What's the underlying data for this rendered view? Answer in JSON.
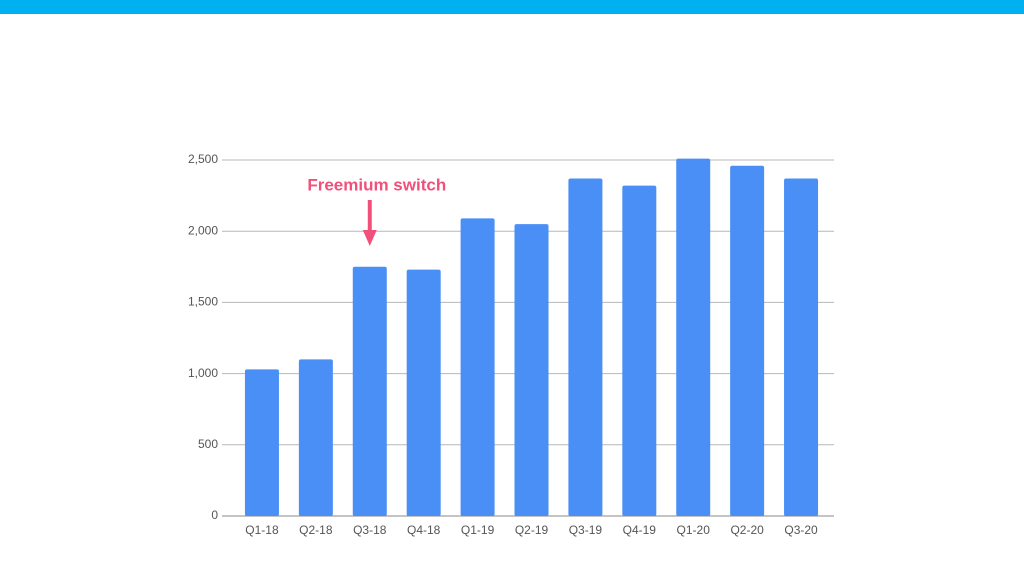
{
  "chart_data": {
    "type": "bar",
    "categories": [
      "Q1-18",
      "Q2-18",
      "Q3-18",
      "Q4-18",
      "Q1-19",
      "Q2-19",
      "Q3-19",
      "Q4-19",
      "Q1-20",
      "Q2-20",
      "Q3-20"
    ],
    "values": [
      1030,
      1100,
      1750,
      1730,
      2090,
      2050,
      2370,
      2320,
      2510,
      2460,
      2370
    ],
    "color": "#4a8ff6",
    "ylim": [
      0,
      2500
    ],
    "yticks": [
      0,
      500,
      {
        "value": 1000,
        "label": "1,000"
      },
      {
        "value": 1500,
        "label": "1,500"
      },
      {
        "value": 2000,
        "label": "2,000"
      },
      {
        "value": 2500,
        "label": "2,500"
      }
    ],
    "grid": true,
    "annotation": "Freemium switch"
  }
}
